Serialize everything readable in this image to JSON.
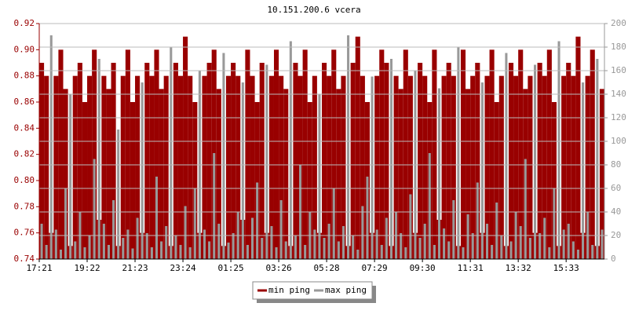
{
  "chart_data": {
    "type": "bar",
    "title": "10.151.200.6 vcera",
    "categories": [
      "17:21",
      null,
      null,
      null,
      null,
      null,
      null,
      null,
      null,
      null,
      "19:22",
      null,
      null,
      null,
      null,
      null,
      null,
      null,
      null,
      null,
      "21:23",
      null,
      null,
      null,
      null,
      null,
      null,
      null,
      null,
      null,
      "23:24",
      null,
      null,
      null,
      null,
      null,
      null,
      null,
      null,
      null,
      "01:25",
      null,
      null,
      null,
      null,
      null,
      null,
      null,
      null,
      null,
      "03:26",
      null,
      null,
      null,
      null,
      null,
      null,
      null,
      null,
      null,
      "05:28",
      null,
      null,
      null,
      null,
      null,
      null,
      null,
      null,
      null,
      "07:29",
      null,
      null,
      null,
      null,
      null,
      null,
      null,
      null,
      null,
      "09:30",
      null,
      null,
      null,
      null,
      null,
      null,
      null,
      null,
      null,
      "11:31",
      null,
      null,
      null,
      null,
      null,
      null,
      null,
      null,
      null,
      "13:32",
      null,
      null,
      null,
      null,
      null,
      null,
      null,
      null,
      null,
      "15:33",
      null,
      null,
      null,
      null,
      null,
      null,
      null
    ],
    "series": [
      {
        "name": "min ping",
        "color": "#990000",
        "axis": "y",
        "values": [
          0.89,
          0.88,
          0.76,
          0.88,
          0.9,
          0.87,
          0.75,
          0.88,
          0.89,
          0.86,
          0.88,
          0.9,
          0.77,
          0.88,
          0.87,
          0.89,
          0.75,
          0.88,
          0.9,
          0.86,
          0.88,
          0.76,
          0.89,
          0.88,
          0.9,
          0.87,
          0.88,
          0.75,
          0.89,
          0.88,
          0.91,
          0.88,
          0.86,
          0.76,
          0.88,
          0.89,
          0.9,
          0.87,
          0.75,
          0.88,
          0.89,
          0.88,
          0.77,
          0.9,
          0.88,
          0.86,
          0.89,
          0.76,
          0.88,
          0.9,
          0.88,
          0.87,
          0.75,
          0.89,
          0.88,
          0.9,
          0.86,
          0.88,
          0.76,
          0.89,
          0.88,
          0.9,
          0.87,
          0.88,
          0.75,
          0.89,
          0.91,
          0.88,
          0.86,
          0.76,
          0.88,
          0.9,
          0.89,
          0.75,
          0.88,
          0.87,
          0.9,
          0.88,
          0.76,
          0.89,
          0.88,
          0.86,
          0.9,
          0.77,
          0.88,
          0.89,
          0.88,
          0.75,
          0.9,
          0.87,
          0.88,
          0.89,
          0.76,
          0.88,
          0.9,
          0.86,
          0.88,
          0.75,
          0.89,
          0.88,
          0.9,
          0.87,
          0.88,
          0.76,
          0.89,
          0.88,
          0.9,
          0.86,
          0.75,
          0.88,
          0.89,
          0.88,
          0.91,
          0.76,
          0.88,
          0.9,
          0.75,
          0.87
        ]
      },
      {
        "name": "max ping",
        "color": "#999999",
        "axis": "y2",
        "values": [
          30,
          12,
          190,
          25,
          8,
          60,
          140,
          15,
          40,
          10,
          20,
          85,
          170,
          30,
          12,
          50,
          110,
          18,
          25,
          9,
          35,
          150,
          22,
          10,
          70,
          15,
          28,
          180,
          20,
          12,
          45,
          10,
          60,
          160,
          25,
          15,
          90,
          30,
          175,
          14,
          22,
          40,
          150,
          12,
          35,
          65,
          18,
          165,
          28,
          10,
          50,
          15,
          185,
          20,
          80,
          12,
          40,
          25,
          140,
          18,
          30,
          60,
          15,
          28,
          190,
          20,
          8,
          45,
          70,
          155,
          25,
          12,
          35,
          170,
          40,
          22,
          10,
          55,
          160,
          18,
          30,
          90,
          12,
          145,
          26,
          15,
          50,
          180,
          10,
          38,
          22,
          65,
          150,
          30,
          12,
          48,
          20,
          175,
          15,
          40,
          28,
          85,
          18,
          165,
          22,
          35,
          10,
          60,
          185,
          25,
          30,
          15,
          8,
          150,
          40,
          12,
          170,
          25
        ]
      }
    ],
    "ylim": [
      0.74,
      0.92
    ],
    "yticks": [
      0.74,
      0.76,
      0.78,
      {
        "value": 0.8,
        "label": "0.80"
      },
      0.82,
      0.84,
      0.86,
      0.88,
      {
        "value": 0.9,
        "label": "0.90"
      },
      0.92
    ],
    "y2lim": [
      0,
      200
    ],
    "y2ticks": [
      0,
      20,
      40,
      60,
      80,
      100,
      120,
      140,
      160,
      180,
      200
    ],
    "grid": true
  }
}
